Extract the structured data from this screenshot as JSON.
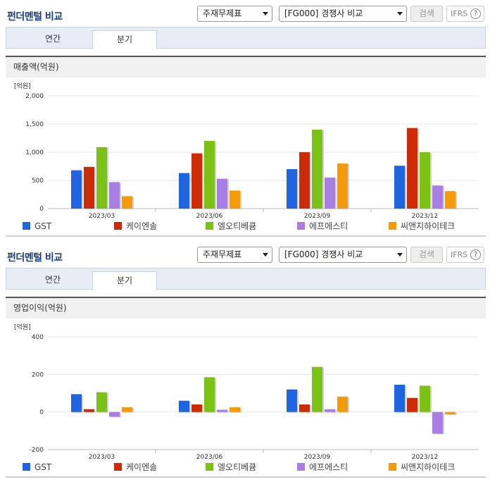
{
  "colors": {
    "GST": "#1f64e0",
    "케이엔솔": "#cc2b05",
    "엘오티베큠": "#7cc216",
    "에프에스티": "#a97ee4",
    "씨앤지하이테크": "#f59a0a"
  },
  "panels": [
    {
      "title": "펀더멘털 비교",
      "select1": "주재무제표",
      "select2": "[FG000] 경쟁사 비교",
      "search_label": "검색",
      "ifrs_label": "IFRS",
      "help_glyph": "?",
      "tabs": [
        "연간",
        "분기"
      ],
      "section_label": "매출액(억원)",
      "unit": "[억원]",
      "legend": [
        "GST",
        "케이엔솔",
        "엘오티베큠",
        "에프에스티",
        "씨앤지하이테크"
      ]
    },
    {
      "title": "펀더멘털 비교",
      "select1": "주재무제표",
      "select2": "[FG000] 경쟁사 비교",
      "search_label": "검색",
      "ifrs_label": "IFRS",
      "help_glyph": "?",
      "tabs": [
        "연간",
        "분기"
      ],
      "section_label": "영업이익(억원)",
      "unit": "[억원]",
      "legend": [
        "GST",
        "케이엔솔",
        "엘오티베큠",
        "에프에스티",
        "씨앤지하이테크"
      ]
    }
  ],
  "chart_data": [
    {
      "type": "bar",
      "title": "매출액(억원)",
      "ylabel": "[억원]",
      "categories": [
        "2023/03",
        "2023/06",
        "2023/09",
        "2023/12"
      ],
      "yticks": [
        "2,000",
        "1,500",
        "1,000",
        "500",
        "0"
      ],
      "ylim": [
        0,
        2000
      ],
      "grid": true,
      "legend_position": "bottom",
      "series": [
        {
          "name": "GST",
          "values": [
            680,
            630,
            700,
            760
          ]
        },
        {
          "name": "케이엔솔",
          "values": [
            740,
            980,
            1000,
            1430
          ]
        },
        {
          "name": "엘오티베큠",
          "values": [
            1090,
            1200,
            1400,
            1000
          ]
        },
        {
          "name": "에프에스티",
          "values": [
            470,
            530,
            550,
            410
          ]
        },
        {
          "name": "씨앤지하이테크",
          "values": [
            220,
            320,
            800,
            310
          ]
        }
      ]
    },
    {
      "type": "bar",
      "title": "영업이익(억원)",
      "ylabel": "[억원]",
      "categories": [
        "2023/03",
        "2023/06",
        "2023/09",
        "2023/12"
      ],
      "yticks": [
        "400",
        "200",
        "0",
        "-200"
      ],
      "ylim": [
        -200,
        400
      ],
      "grid": true,
      "legend_position": "bottom",
      "series": [
        {
          "name": "GST",
          "values": [
            95,
            60,
            120,
            145
          ]
        },
        {
          "name": "케이엔솔",
          "values": [
            15,
            40,
            40,
            75
          ]
        },
        {
          "name": "엘오티베큠",
          "values": [
            105,
            185,
            240,
            140
          ]
        },
        {
          "name": "에프에스티",
          "values": [
            -25,
            12,
            15,
            -115
          ]
        },
        {
          "name": "씨앤지하이테크",
          "values": [
            25,
            25,
            82,
            -12
          ]
        }
      ]
    }
  ]
}
